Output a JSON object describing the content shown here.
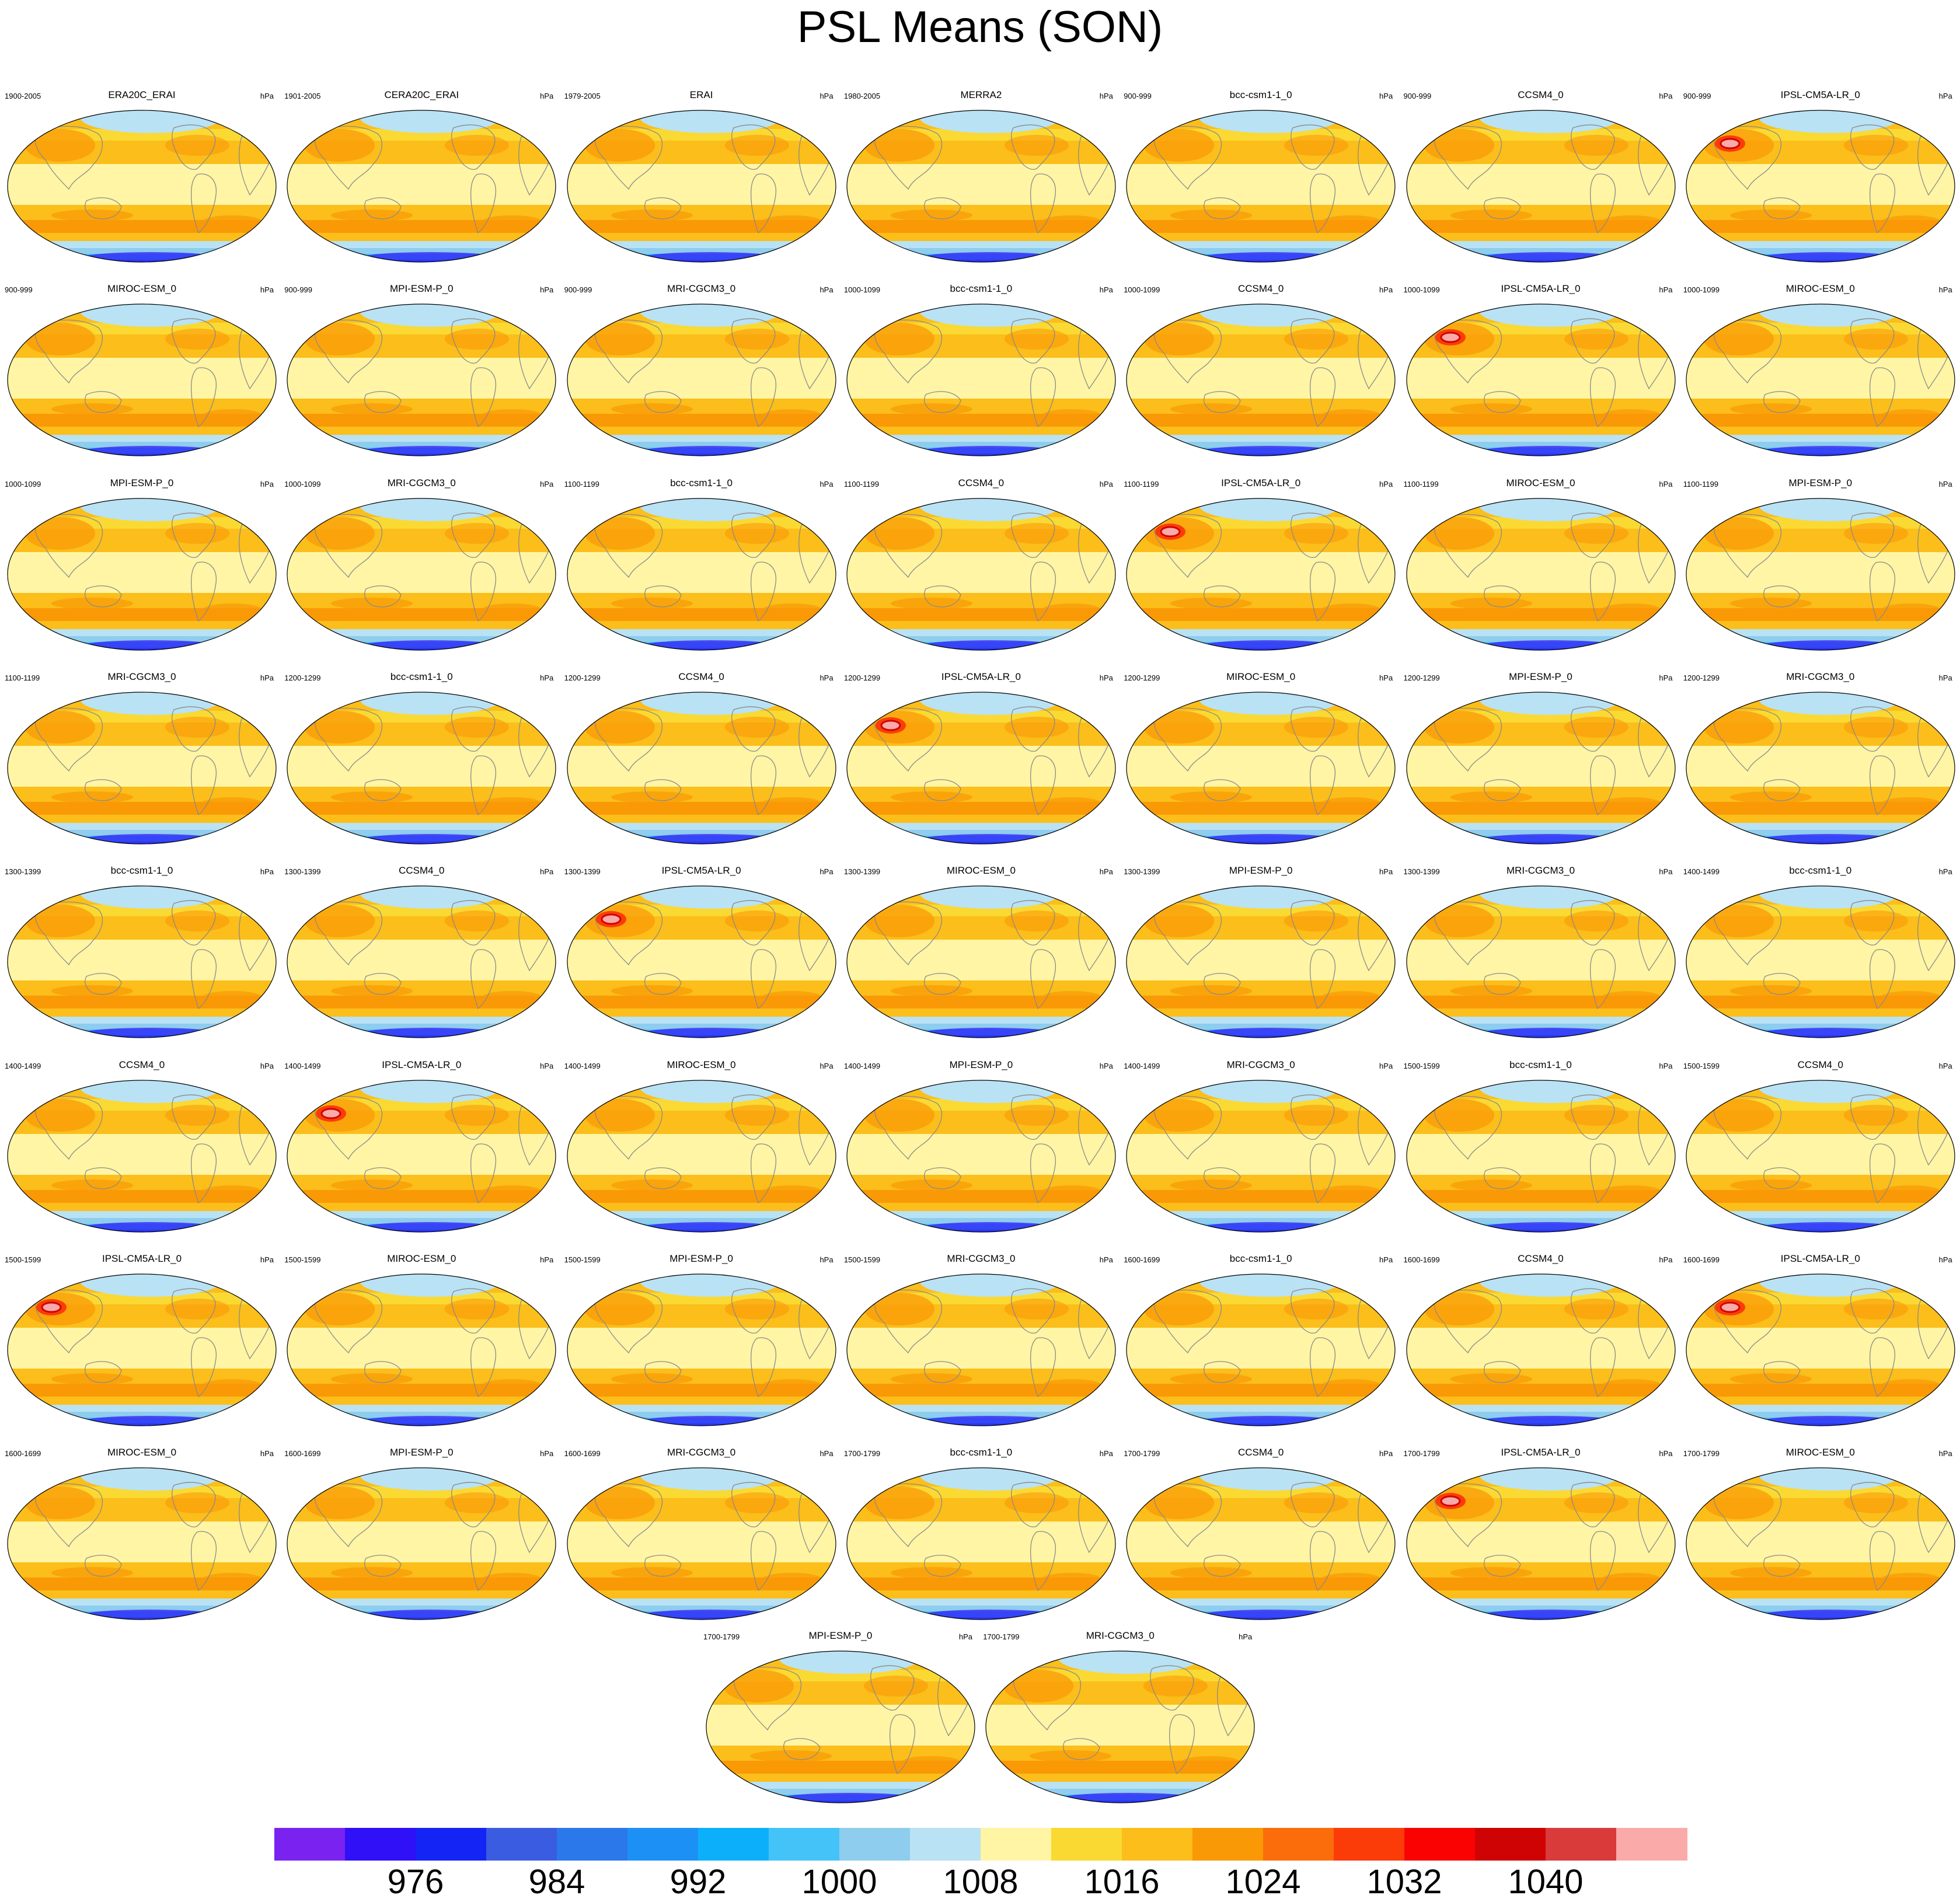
{
  "title": "PSL Means (SON)",
  "units": "hPa",
  "colorbar": {
    "colors": [
      "#7a22f0",
      "#2f10f7",
      "#1424f5",
      "#3a5ce0",
      "#2a78ea",
      "#1d90f5",
      "#0cb0fa",
      "#44c3f8",
      "#8ecdee",
      "#b9e2f4",
      "#fff5a5",
      "#fbd933",
      "#fbbe1a",
      "#fa9906",
      "#fb6d0a",
      "#fb3c08",
      "#fa0202",
      "#cf0303",
      "#d93a3a",
      "#fbaaaa"
    ],
    "labels": [
      "976",
      "984",
      "992",
      "1000",
      "1008",
      "1016",
      "1024",
      "1032",
      "1040"
    ]
  },
  "panels": [
    {
      "model": "ERA20C_ERAI",
      "years": "1900-2005"
    },
    {
      "model": "CERA20C_ERAI",
      "years": "1901-2005"
    },
    {
      "model": "ERAI",
      "years": "1979-2005"
    },
    {
      "model": "MERRA2",
      "years": "1980-2005"
    },
    {
      "model": "bcc-csm1-1_0",
      "years": "900-999"
    },
    {
      "model": "CCSM4_0",
      "years": "900-999"
    },
    {
      "model": "IPSL-CM5A-LR_0",
      "years": "900-999"
    },
    {
      "model": "MIROC-ESM_0",
      "years": "900-999"
    },
    {
      "model": "MPI-ESM-P_0",
      "years": "900-999"
    },
    {
      "model": "MRI-CGCM3_0",
      "years": "900-999"
    },
    {
      "model": "bcc-csm1-1_0",
      "years": "1000-1099"
    },
    {
      "model": "CCSM4_0",
      "years": "1000-1099"
    },
    {
      "model": "IPSL-CM5A-LR_0",
      "years": "1000-1099"
    },
    {
      "model": "MIROC-ESM_0",
      "years": "1000-1099"
    },
    {
      "model": "MPI-ESM-P_0",
      "years": "1000-1099"
    },
    {
      "model": "MRI-CGCM3_0",
      "years": "1000-1099"
    },
    {
      "model": "bcc-csm1-1_0",
      "years": "1100-1199"
    },
    {
      "model": "CCSM4_0",
      "years": "1100-1199"
    },
    {
      "model": "IPSL-CM5A-LR_0",
      "years": "1100-1199"
    },
    {
      "model": "MIROC-ESM_0",
      "years": "1100-1199"
    },
    {
      "model": "MPI-ESM-P_0",
      "years": "1100-1199"
    },
    {
      "model": "MRI-CGCM3_0",
      "years": "1100-1199"
    },
    {
      "model": "bcc-csm1-1_0",
      "years": "1200-1299"
    },
    {
      "model": "CCSM4_0",
      "years": "1200-1299"
    },
    {
      "model": "IPSL-CM5A-LR_0",
      "years": "1200-1299"
    },
    {
      "model": "MIROC-ESM_0",
      "years": "1200-1299"
    },
    {
      "model": "MPI-ESM-P_0",
      "years": "1200-1299"
    },
    {
      "model": "MRI-CGCM3_0",
      "years": "1200-1299"
    },
    {
      "model": "bcc-csm1-1_0",
      "years": "1300-1399"
    },
    {
      "model": "CCSM4_0",
      "years": "1300-1399"
    },
    {
      "model": "IPSL-CM5A-LR_0",
      "years": "1300-1399"
    },
    {
      "model": "MIROC-ESM_0",
      "years": "1300-1399"
    },
    {
      "model": "MPI-ESM-P_0",
      "years": "1300-1399"
    },
    {
      "model": "MRI-CGCM3_0",
      "years": "1300-1399"
    },
    {
      "model": "bcc-csm1-1_0",
      "years": "1400-1499"
    },
    {
      "model": "CCSM4_0",
      "years": "1400-1499"
    },
    {
      "model": "IPSL-CM5A-LR_0",
      "years": "1400-1499"
    },
    {
      "model": "MIROC-ESM_0",
      "years": "1400-1499"
    },
    {
      "model": "MPI-ESM-P_0",
      "years": "1400-1499"
    },
    {
      "model": "MRI-CGCM3_0",
      "years": "1400-1499"
    },
    {
      "model": "bcc-csm1-1_0",
      "years": "1500-1599"
    },
    {
      "model": "CCSM4_0",
      "years": "1500-1599"
    },
    {
      "model": "IPSL-CM5A-LR_0",
      "years": "1500-1599"
    },
    {
      "model": "MIROC-ESM_0",
      "years": "1500-1599"
    },
    {
      "model": "MPI-ESM-P_0",
      "years": "1500-1599"
    },
    {
      "model": "MRI-CGCM3_0",
      "years": "1500-1599"
    },
    {
      "model": "bcc-csm1-1_0",
      "years": "1600-1699"
    },
    {
      "model": "CCSM4_0",
      "years": "1600-1699"
    },
    {
      "model": "IPSL-CM5A-LR_0",
      "years": "1600-1699"
    },
    {
      "model": "MIROC-ESM_0",
      "years": "1600-1699"
    },
    {
      "model": "MPI-ESM-P_0",
      "years": "1600-1699"
    },
    {
      "model": "MRI-CGCM3_0",
      "years": "1600-1699"
    },
    {
      "model": "bcc-csm1-1_0",
      "years": "1700-1799"
    },
    {
      "model": "CCSM4_0",
      "years": "1700-1799"
    },
    {
      "model": "IPSL-CM5A-LR_0",
      "years": "1700-1799"
    },
    {
      "model": "MIROC-ESM_0",
      "years": "1700-1799"
    },
    {
      "model": "MPI-ESM-P_0",
      "years": "1700-1799"
    },
    {
      "model": "MRI-CGCM3_0",
      "years": "1700-1799"
    }
  ]
}
